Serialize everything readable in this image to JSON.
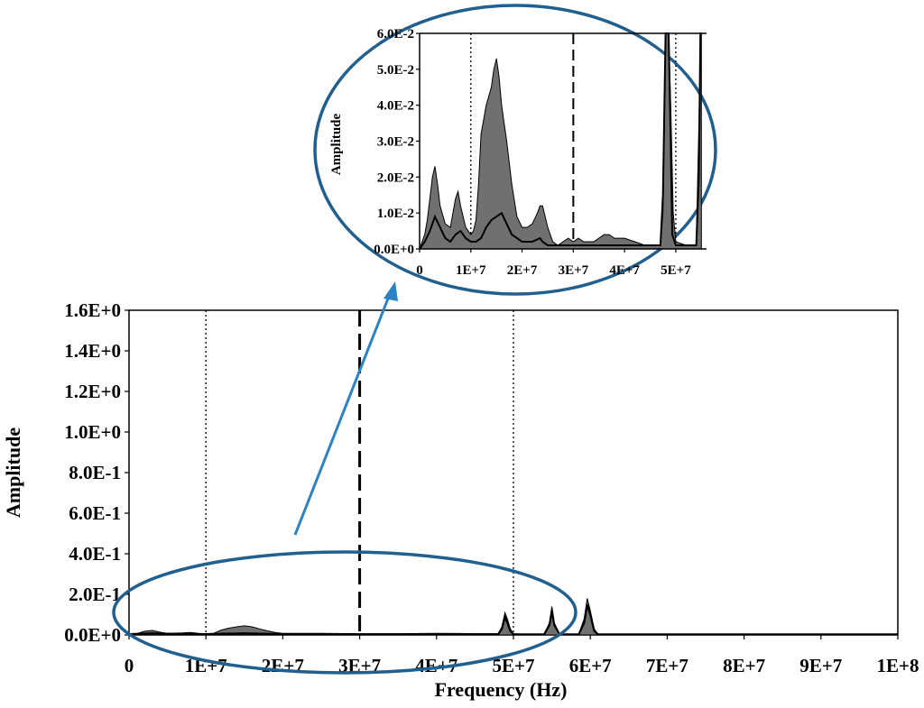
{
  "colors": {
    "fill": "#707070",
    "line": "#000000",
    "ellipse": "#215f8f",
    "arrow": "#2b82c4"
  },
  "chart_data": [
    {
      "type": "area",
      "name": "main",
      "xlabel": "Frequency (Hz)",
      "ylabel": "Amplitude",
      "xlim": [
        0,
        100000000
      ],
      "ylim": [
        0,
        1.6
      ],
      "x_tick_values": [
        0,
        10000000,
        20000000,
        30000000,
        40000000,
        50000000,
        60000000,
        70000000,
        80000000,
        90000000,
        100000000
      ],
      "x_tick_labels": [
        "0",
        "1E+7",
        "2E+7",
        "3E+7",
        "4E+7",
        "5E+7",
        "6E+7",
        "7E+7",
        "8E+7",
        "9E+7",
        "1E+8"
      ],
      "y_tick_values": [
        0,
        0.2,
        0.4,
        0.6,
        0.8,
        1.0,
        1.2,
        1.4,
        1.6
      ],
      "y_tick_labels": [
        "0.0E+0",
        "2.0E-1",
        "4.0E-1",
        "6.0E-1",
        "8.0E-1",
        "1.0E+0",
        "1.2E+0",
        "1.4E+0",
        "1.6E+0"
      ],
      "reference_lines": [
        {
          "x": 10000000,
          "style": "dotted"
        },
        {
          "x": 30000000,
          "style": "dashed"
        },
        {
          "x": 50000000,
          "style": "dotted"
        }
      ],
      "envelope_series": {
        "x": [
          0,
          1000000,
          2000000,
          3000000,
          4000000,
          5000000,
          7000000,
          8000000,
          9000000,
          10000000,
          11000000,
          12000000,
          13000000,
          14000000,
          15000000,
          16000000,
          17000000,
          18000000,
          19000000,
          20000000,
          25000000,
          30000000,
          35000000,
          40000000,
          45000000,
          48000000,
          48500000,
          48900000,
          49200000,
          49600000,
          50000000,
          51000000,
          54000000,
          54700000,
          55000000,
          55300000,
          56000000,
          58500000,
          59200000,
          59600000,
          60000000,
          60500000,
          61000000,
          65000000,
          70000000,
          80000000,
          90000000,
          100000000
        ],
        "values": [
          0.004,
          0.006,
          0.018,
          0.022,
          0.014,
          0.008,
          0.01,
          0.012,
          0.008,
          0.006,
          0.008,
          0.024,
          0.034,
          0.04,
          0.045,
          0.04,
          0.03,
          0.02,
          0.012,
          0.008,
          0.008,
          0.006,
          0.006,
          0.008,
          0.006,
          0.006,
          0.04,
          0.11,
          0.08,
          0.03,
          0.006,
          0.004,
          0.004,
          0.06,
          0.14,
          0.06,
          0.004,
          0.004,
          0.08,
          0.18,
          0.12,
          0.03,
          0.004,
          0.004,
          0.003,
          0.003,
          0.003,
          0.003
        ]
      },
      "mean_series": {
        "x": [
          0,
          3000000,
          6000000,
          10000000,
          15000000,
          20000000,
          25000000,
          30000000,
          40000000,
          48000000,
          48500000,
          48900000,
          49200000,
          49600000,
          50000000,
          54000000,
          54700000,
          55000000,
          55300000,
          56000000,
          58500000,
          59200000,
          59600000,
          60000000,
          60500000,
          61000000,
          70000000,
          100000000
        ],
        "values": [
          0.004,
          0.008,
          0.005,
          0.004,
          0.008,
          0.004,
          0.004,
          0.003,
          0.003,
          0.003,
          0.03,
          0.09,
          0.06,
          0.02,
          0.003,
          0.003,
          0.05,
          0.12,
          0.05,
          0.003,
          0.003,
          0.06,
          0.15,
          0.1,
          0.02,
          0.003,
          0.003,
          0.003
        ]
      }
    },
    {
      "type": "area",
      "name": "inset",
      "xlabel": "",
      "ylabel": "Amplitude",
      "xlim": [
        0,
        56000000
      ],
      "ylim": [
        0,
        0.06
      ],
      "x_tick_values": [
        0,
        10000000,
        20000000,
        30000000,
        40000000,
        50000000
      ],
      "x_tick_labels": [
        "0",
        "1E+7",
        "2E+7",
        "3E+7",
        "4E+7",
        "5E+7"
      ],
      "y_tick_values": [
        0,
        0.01,
        0.02,
        0.03,
        0.04,
        0.05,
        0.06
      ],
      "y_tick_labels": [
        "0.0E+0",
        "1.0E-2",
        "2.0E-2",
        "3.0E-2",
        "4.0E-2",
        "5.0E-2",
        "6.0E-2"
      ],
      "reference_lines": [
        {
          "x": 10000000,
          "style": "dotted"
        },
        {
          "x": 30000000,
          "style": "dashed"
        },
        {
          "x": 50000000,
          "style": "dotted"
        }
      ],
      "envelope_series": {
        "x": [
          0,
          500000,
          1000000,
          1500000,
          2000000,
          2500000,
          3000000,
          3500000,
          4000000,
          5000000,
          6000000,
          6500000,
          7000000,
          7500000,
          8000000,
          9000000,
          10000000,
          10500000,
          11000000,
          11500000,
          12000000,
          12500000,
          13000000,
          14000000,
          14500000,
          15000000,
          15500000,
          16000000,
          17000000,
          18000000,
          19000000,
          20000000,
          21000000,
          22000000,
          23000000,
          23500000,
          24000000,
          25000000,
          26000000,
          27000000,
          28000000,
          29000000,
          30000000,
          31000000,
          32000000,
          33000000,
          34000000,
          35000000,
          36000000,
          37000000,
          38000000,
          40000000,
          42000000,
          44000000,
          46000000,
          47000000,
          47500000,
          48000000,
          48200000,
          48600000,
          49000000,
          49500000,
          50000000,
          52000000,
          54000000,
          54600000,
          55000000
        ],
        "values": [
          0.0,
          0.002,
          0.004,
          0.008,
          0.014,
          0.02,
          0.023,
          0.018,
          0.012,
          0.007,
          0.006,
          0.01,
          0.014,
          0.016,
          0.012,
          0.006,
          0.004,
          0.005,
          0.008,
          0.018,
          0.032,
          0.036,
          0.04,
          0.045,
          0.05,
          0.053,
          0.048,
          0.04,
          0.03,
          0.018,
          0.009,
          0.006,
          0.006,
          0.007,
          0.01,
          0.012,
          0.012,
          0.006,
          0.002,
          0.001,
          0.002,
          0.003,
          0.002,
          0.003,
          0.002,
          0.002,
          0.002,
          0.003,
          0.004,
          0.004,
          0.003,
          0.003,
          0.002,
          0.001,
          0.001,
          0.001,
          0.01,
          0.06,
          0.06,
          0.06,
          0.04,
          0.01,
          0.002,
          0.001,
          0.001,
          0.04,
          0.06
        ]
      },
      "mean_series": {
        "x": [
          0,
          1000000,
          2000000,
          3000000,
          4000000,
          5000000,
          6000000,
          7000000,
          8000000,
          9000000,
          10000000,
          11000000,
          12000000,
          13000000,
          14000000,
          15000000,
          16000000,
          17000000,
          18000000,
          20000000,
          22000000,
          23500000,
          24000000,
          25000000,
          27000000,
          30000000,
          35000000,
          40000000,
          44000000,
          46000000,
          47000000,
          47500000,
          48000000,
          48200000,
          48600000,
          49000000,
          49300000,
          50000000,
          52000000,
          54000000,
          54500000,
          54800000,
          55000000
        ],
        "values": [
          0.0,
          0.002,
          0.005,
          0.009,
          0.006,
          0.003,
          0.002,
          0.004,
          0.005,
          0.003,
          0.002,
          0.002,
          0.003,
          0.006,
          0.008,
          0.009,
          0.01,
          0.007,
          0.004,
          0.002,
          0.002,
          0.003,
          0.002,
          0.001,
          0.001,
          0.001,
          0.001,
          0.001,
          0.001,
          0.001,
          0.001,
          0.015,
          0.06,
          0.06,
          0.06,
          0.03,
          0.004,
          0.001,
          0.001,
          0.001,
          0.02,
          0.06,
          0.06
        ]
      }
    }
  ]
}
